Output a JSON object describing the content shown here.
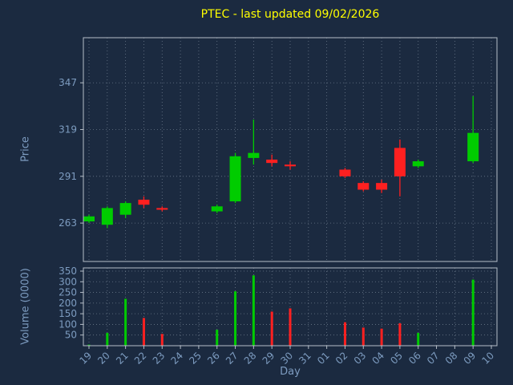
{
  "colors": {
    "background": "#1b2a40",
    "up": "#00cc00",
    "down": "#ff2020",
    "grid": "#93a1b0",
    "spine": "#b6bec8",
    "tick_label": "#7d9cc0",
    "axis_label": "#7d9cc0",
    "title": "#ffff00"
  },
  "chart_data": {
    "type": "candlestick+volume",
    "title": "PTEC - last updated 09/02/2026",
    "xlabel": "Day",
    "price_axis": {
      "label": "Price",
      "ticks": [
        263,
        291,
        319,
        347
      ],
      "ylim": [
        240,
        374
      ]
    },
    "volume_axis": {
      "label": "Volume (0000)",
      "ticks": [
        50,
        100,
        150,
        200,
        250,
        300,
        350
      ],
      "ylim": [
        0,
        365
      ]
    },
    "days": [
      "19",
      "20",
      "21",
      "22",
      "23",
      "24",
      "25",
      "26",
      "27",
      "28",
      "29",
      "30",
      "31",
      "01",
      "02",
      "03",
      "04",
      "05",
      "06",
      "07",
      "08",
      "09",
      "10"
    ],
    "candles": [
      {
        "open": 264,
        "high": 268,
        "low": 263,
        "close": 267
      },
      {
        "open": 262,
        "high": 273,
        "low": 260,
        "close": 272
      },
      {
        "open": 268,
        "high": 276,
        "low": 266,
        "close": 275
      },
      {
        "open": 277,
        "high": 279,
        "low": 272,
        "close": 274
      },
      {
        "open": 272,
        "high": 273,
        "low": 270,
        "close": 271
      },
      null,
      null,
      {
        "open": 270,
        "high": 274,
        "low": 269,
        "close": 273
      },
      {
        "open": 276,
        "high": 305,
        "low": 275,
        "close": 303
      },
      {
        "open": 302,
        "high": 325,
        "low": 298,
        "close": 305
      },
      {
        "open": 301,
        "high": 304,
        "low": 297,
        "close": 299
      },
      {
        "open": 298,
        "high": 300,
        "low": 295,
        "close": 297
      },
      null,
      null,
      {
        "open": 295,
        "high": 296,
        "low": 290,
        "close": 291
      },
      {
        "open": 287,
        "high": 288,
        "low": 282,
        "close": 283
      },
      {
        "open": 287,
        "high": 289,
        "low": 281,
        "close": 283
      },
      {
        "open": 308,
        "high": 313,
        "low": 279,
        "close": 291
      },
      {
        "open": 297,
        "high": 301,
        "low": 296,
        "close": 300
      },
      null,
      null,
      {
        "open": 300,
        "high": 339,
        "low": 299,
        "close": 317
      },
      null
    ],
    "volumes": [
      5,
      60,
      220,
      130,
      55,
      null,
      null,
      75,
      255,
      330,
      160,
      175,
      null,
      null,
      110,
      85,
      80,
      105,
      60,
      null,
      null,
      310,
      null
    ]
  }
}
